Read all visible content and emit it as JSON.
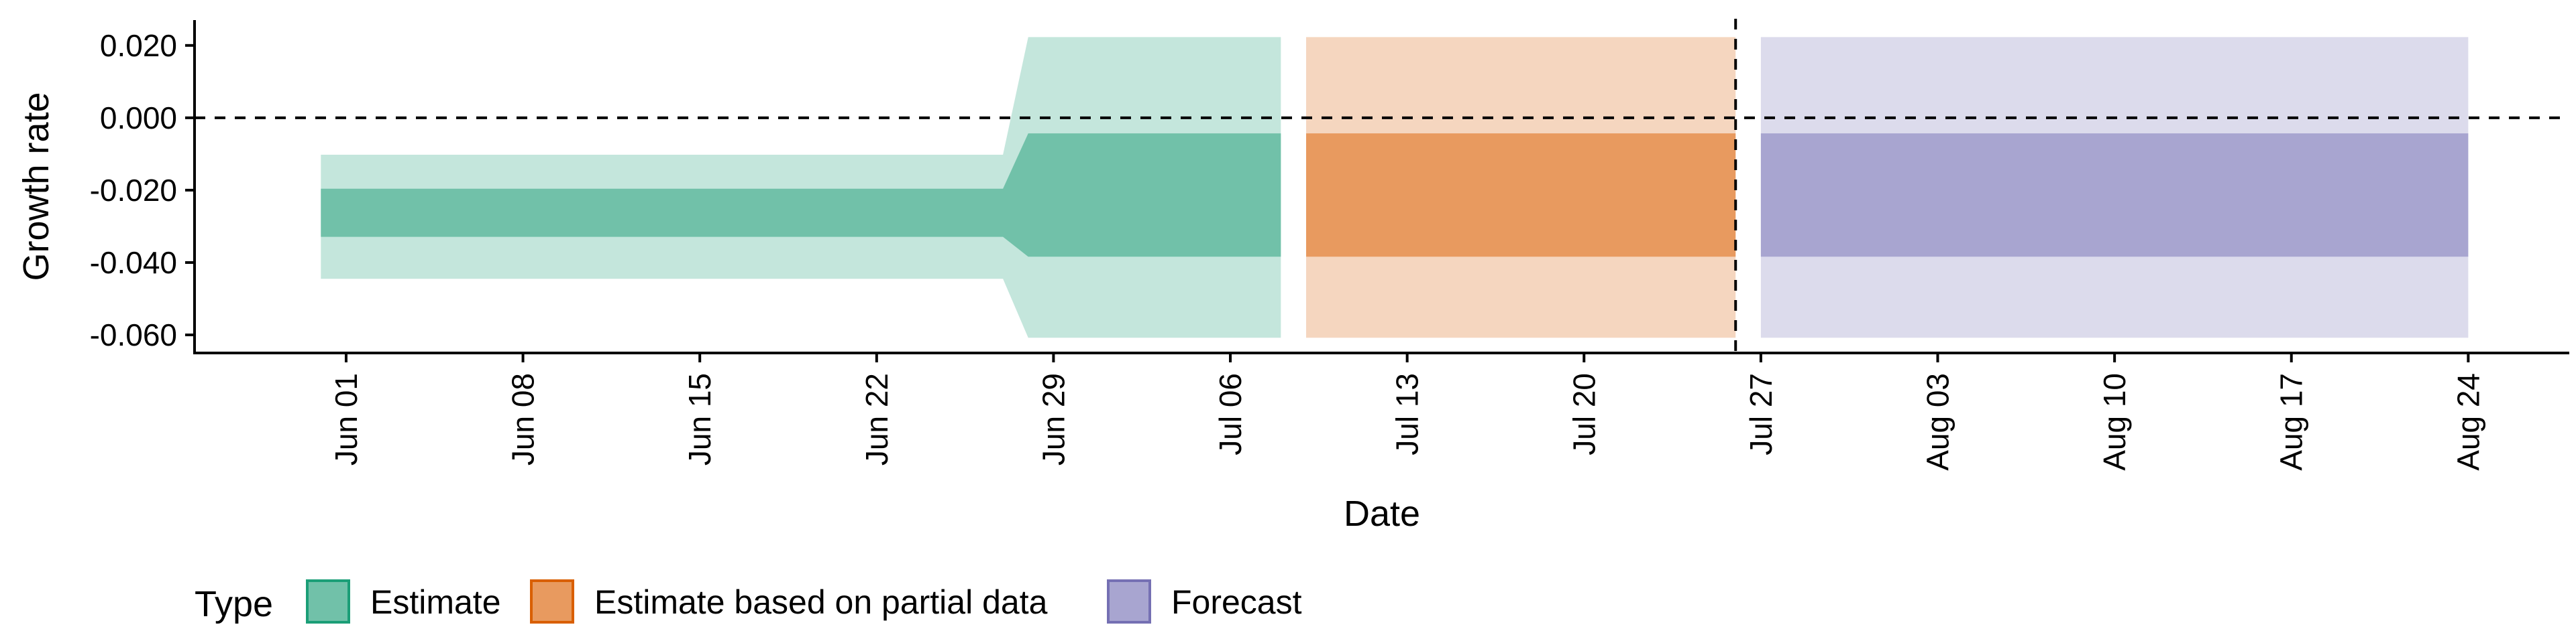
{
  "chart_data": {
    "type": "area",
    "xlabel": "Date",
    "ylabel": "Growth rate",
    "x_ticks": [
      "Jun 01",
      "Jun 08",
      "Jun 15",
      "Jun 22",
      "Jun 29",
      "Jul 06",
      "Jul 13",
      "Jul 20",
      "Jul 27",
      "Aug 03",
      "Aug 10",
      "Aug 17",
      "Aug 24"
    ],
    "x_tick_dates": [
      "2020-06-01",
      "2020-06-08",
      "2020-06-15",
      "2020-06-22",
      "2020-06-29",
      "2020-07-06",
      "2020-07-13",
      "2020-07-20",
      "2020-07-27",
      "2020-08-03",
      "2020-08-10",
      "2020-08-17",
      "2020-08-24"
    ],
    "xlim": [
      "2020-05-26",
      "2020-08-28"
    ],
    "y_ticks": [
      "0.020",
      "0.000",
      "-0.020",
      "-0.040",
      "-0.060"
    ],
    "y_tick_values": [
      0.02,
      0.0,
      -0.02,
      -0.04,
      -0.06
    ],
    "ylim": [
      -0.065,
      0.027
    ],
    "reference_lines": {
      "horizontal_y": 0.0,
      "vertical_date": "2020-07-26",
      "style": "dashed"
    },
    "legend": {
      "title": "Type",
      "position": "bottom",
      "entries": [
        "Estimate",
        "Estimate based on partial data",
        "Forecast"
      ]
    },
    "series": [
      {
        "name": "Estimate",
        "color": "#1b9e77",
        "fill_inner": "#71c1a9",
        "fill_outer": "#c4e6dc",
        "points": [
          {
            "date": "2020-05-31",
            "lower_90": -0.0445,
            "upper_90": -0.0102,
            "lower_50": -0.0329,
            "upper_50": -0.0196
          },
          {
            "date": "2020-06-27",
            "lower_90": -0.0445,
            "upper_90": -0.0102,
            "lower_50": -0.0329,
            "upper_50": -0.0196
          },
          {
            "date": "2020-06-28",
            "lower_90": -0.0608,
            "upper_90": 0.0223,
            "lower_50": -0.0384,
            "upper_50": -0.0043
          },
          {
            "date": "2020-07-08",
            "lower_90": -0.0608,
            "upper_90": 0.0223,
            "lower_50": -0.0384,
            "upper_50": -0.0043
          }
        ]
      },
      {
        "name": "Estimate based on partial data",
        "color": "#d95f02",
        "fill_inner": "#e89a5f",
        "fill_outer": "#f5d6bf",
        "points": [
          {
            "date": "2020-07-09",
            "lower_90": -0.0608,
            "upper_90": 0.0223,
            "lower_50": -0.0384,
            "upper_50": -0.0043
          },
          {
            "date": "2020-07-26",
            "lower_90": -0.0608,
            "upper_90": 0.0223,
            "lower_50": -0.0384,
            "upper_50": -0.0043
          }
        ]
      },
      {
        "name": "Forecast",
        "color": "#7570b3",
        "fill_inner": "#a8a5d0",
        "fill_outer": "#dcdbec",
        "points": [
          {
            "date": "2020-07-27",
            "lower_90": -0.0608,
            "upper_90": 0.0223,
            "lower_50": -0.0384,
            "upper_50": -0.0043
          },
          {
            "date": "2020-08-24",
            "lower_90": -0.0608,
            "upper_90": 0.0223,
            "lower_50": -0.0384,
            "upper_50": -0.0043
          }
        ]
      }
    ]
  }
}
